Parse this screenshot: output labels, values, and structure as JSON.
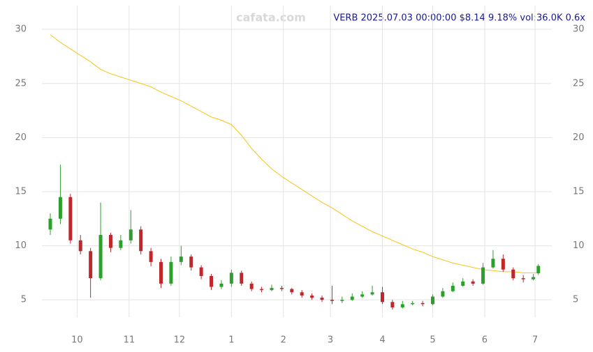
{
  "chart_data": {
    "type": "candlestick",
    "title": "VERB 2025.07.03 00:00:00 $8.14 9.18% vol:36.0K 0.6x",
    "watermark": "cafata.com",
    "x": [
      14,
      20,
      26,
      32,
      38,
      44,
      50,
      56,
      62,
      68,
      74,
      80,
      86,
      92,
      98,
      104,
      110,
      116,
      122,
      128,
      134,
      140,
      146,
      152,
      158,
      164,
      170,
      176,
      182,
      188,
      194,
      200,
      206,
      212,
      218,
      224,
      230,
      236,
      242,
      248,
      254,
      260,
      266,
      272,
      278,
      284,
      290,
      296,
      302,
      305
    ],
    "open": [
      11.5,
      12.5,
      14.5,
      10.5,
      9.5,
      7,
      11,
      9.8,
      10.5,
      11.5,
      9.5,
      8.5,
      6.5,
      8.5,
      9,
      8,
      7.2,
      6.2,
      6.5,
      7.5,
      6.5,
      6,
      5.9,
      6.1,
      6,
      5.7,
      5.4,
      5.2,
      5,
      4.9,
      5,
      5.3,
      5.5,
      5.7,
      4.8,
      4.3,
      4.6,
      4.7,
      4.6,
      5.3,
      5.8,
      6.3,
      6.7,
      6.5,
      8,
      8.8,
      7.8,
      7,
      6.9,
      7.46
    ],
    "high": [
      13,
      17.5,
      14.8,
      11,
      9.8,
      14,
      11.2,
      11,
      13.3,
      11.8,
      9.8,
      8.8,
      9,
      10,
      9.2,
      8.2,
      7.4,
      6.8,
      7.8,
      7.7,
      6.7,
      6.2,
      6.4,
      6.3,
      6.1,
      5.9,
      5.6,
      5.4,
      6.3,
      5.3,
      5.6,
      5.8,
      6.3,
      6.2,
      5,
      4.9,
      4.9,
      4.9,
      5.5,
      6.1,
      6.6,
      7,
      6.9,
      8.4,
      9.6,
      9.2,
      8,
      7.3,
      7.4,
      8.3
    ],
    "low": [
      11,
      12,
      10.2,
      9.2,
      5.2,
      6.8,
      9.4,
      9.6,
      10.2,
      9.2,
      8.1,
      6.1,
      6.3,
      8.2,
      7.7,
      6.9,
      5.9,
      6,
      6.2,
      6.3,
      5.8,
      5.7,
      5.8,
      5.8,
      5.5,
      5.2,
      5,
      4.8,
      4.6,
      4.7,
      4.9,
      5.2,
      5.4,
      4.6,
      4.1,
      4.2,
      4.5,
      4.4,
      4.5,
      5.2,
      5.7,
      6.2,
      6.3,
      6.4,
      7.9,
      7.6,
      6.8,
      6.6,
      6.8,
      7.3
    ],
    "close": [
      12.5,
      14.5,
      10.5,
      9.5,
      7,
      11,
      9.8,
      10.5,
      11.5,
      9.5,
      8.5,
      6.5,
      8.5,
      9,
      8,
      7.2,
      6.2,
      6.5,
      7.5,
      6.5,
      6,
      5.9,
      6.1,
      6,
      5.7,
      5.4,
      5.2,
      5,
      4.9,
      5,
      5.3,
      5.5,
      5.7,
      4.8,
      4.3,
      4.6,
      4.7,
      4.6,
      5.3,
      5.8,
      6.3,
      6.7,
      6.5,
      8,
      8.8,
      7.8,
      7,
      6.9,
      7.1,
      8.14
    ],
    "up_color": "#2ca02c",
    "down_color": "#c0272d",
    "ma": {
      "color": "#f5c518",
      "values": [
        29.5,
        28.8,
        28.2,
        27.6,
        27.0,
        26.3,
        25.9,
        25.6,
        25.3,
        25.0,
        24.7,
        24.2,
        23.8,
        23.4,
        22.9,
        22.4,
        21.9,
        21.6,
        21.2,
        20.2,
        19.0,
        18.0,
        17.1,
        16.4,
        15.8,
        15.2,
        14.6,
        14.0,
        13.5,
        12.9,
        12.3,
        11.8,
        11.3,
        10.9,
        10.5,
        10.1,
        9.7,
        9.4,
        9.0,
        8.7,
        8.4,
        8.2,
        8.0,
        7.8,
        7.7,
        7.6,
        7.6,
        7.5,
        7.5,
        7.5
      ]
    },
    "xlim": [
      9,
      313
    ],
    "xticks": [
      {
        "value": 30,
        "label": "10"
      },
      {
        "value": 61,
        "label": "11"
      },
      {
        "value": 91,
        "label": "12"
      },
      {
        "value": 122,
        "label": "1"
      },
      {
        "value": 153,
        "label": "2"
      },
      {
        "value": 181,
        "label": "3"
      },
      {
        "value": 212,
        "label": "4"
      },
      {
        "value": 242,
        "label": "5"
      },
      {
        "value": 273,
        "label": "6"
      },
      {
        "value": 303,
        "label": "7"
      }
    ],
    "ylim": [
      3.4,
      32.2
    ],
    "yticks": [
      5,
      10,
      15,
      20,
      25,
      30
    ],
    "grid": true
  }
}
